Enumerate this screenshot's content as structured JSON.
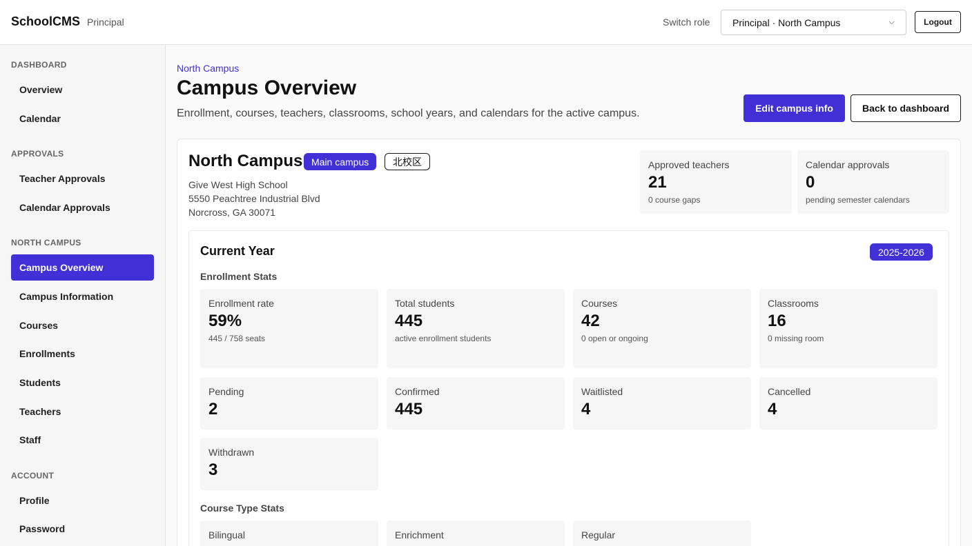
{
  "header": {
    "brand": "SchoolCMS",
    "role": "Principal",
    "switch_label": "Switch role",
    "role_select_value": "Principal · North Campus",
    "logout_label": "Logout"
  },
  "sidebar": {
    "sections": [
      {
        "title": "DASHBOARD",
        "items": [
          {
            "label": "Overview"
          },
          {
            "label": "Calendar"
          }
        ]
      },
      {
        "title": "APPROVALS",
        "items": [
          {
            "label": "Teacher Approvals"
          },
          {
            "label": "Calendar Approvals"
          }
        ]
      },
      {
        "title": "NORTH CAMPUS",
        "items": [
          {
            "label": "Campus Overview",
            "active": true
          },
          {
            "label": "Campus Information"
          },
          {
            "label": "Courses"
          },
          {
            "label": "Enrollments"
          },
          {
            "label": "Students"
          },
          {
            "label": "Teachers"
          },
          {
            "label": "Staff"
          }
        ]
      },
      {
        "title": "ACCOUNT",
        "items": [
          {
            "label": "Profile"
          },
          {
            "label": "Password"
          }
        ]
      }
    ]
  },
  "page": {
    "breadcrumb": "North Campus",
    "title": "Campus Overview",
    "subtitle": "Enrollment, courses, teachers, classrooms, school years, and calendars for the active campus.",
    "edit_button": "Edit campus info",
    "back_button": "Back to dashboard"
  },
  "campus": {
    "name": "North Campus",
    "main_badge": "Main campus",
    "local_name": "北校区",
    "address": [
      "Give West High School",
      "5550 Peachtree Industrial Blvd",
      "Norcross, GA 30071"
    ],
    "summary": [
      {
        "label": "Approved teachers",
        "value": "21",
        "sub": "0 course gaps"
      },
      {
        "label": "Calendar approvals",
        "value": "0",
        "sub": "pending semester calendars"
      }
    ]
  },
  "current_year": {
    "title": "Current Year",
    "year_badge": "2025-2026",
    "enrollment_heading": "Enrollment Stats",
    "enrollment_stats": [
      {
        "label": "Enrollment rate",
        "value": "59%",
        "sub": "445 / 758 seats"
      },
      {
        "label": "Total students",
        "value": "445",
        "sub": "active enrollment students"
      },
      {
        "label": "Courses",
        "value": "42",
        "sub": "0 open or ongoing"
      },
      {
        "label": "Classrooms",
        "value": "16",
        "sub": "0 missing room"
      }
    ],
    "status_stats": [
      {
        "label": "Pending",
        "value": "2"
      },
      {
        "label": "Confirmed",
        "value": "445"
      },
      {
        "label": "Waitlisted",
        "value": "4"
      },
      {
        "label": "Cancelled",
        "value": "4"
      },
      {
        "label": "Withdrawn",
        "value": "3"
      }
    ],
    "course_type_heading": "Course Type Stats",
    "course_types": [
      {
        "label": "Bilingual"
      },
      {
        "label": "Enrichment"
      },
      {
        "label": "Regular"
      }
    ]
  },
  "colors": {
    "accent": "#4030d6",
    "surface": "#f6f6f6",
    "border": "#e5e5e5"
  }
}
